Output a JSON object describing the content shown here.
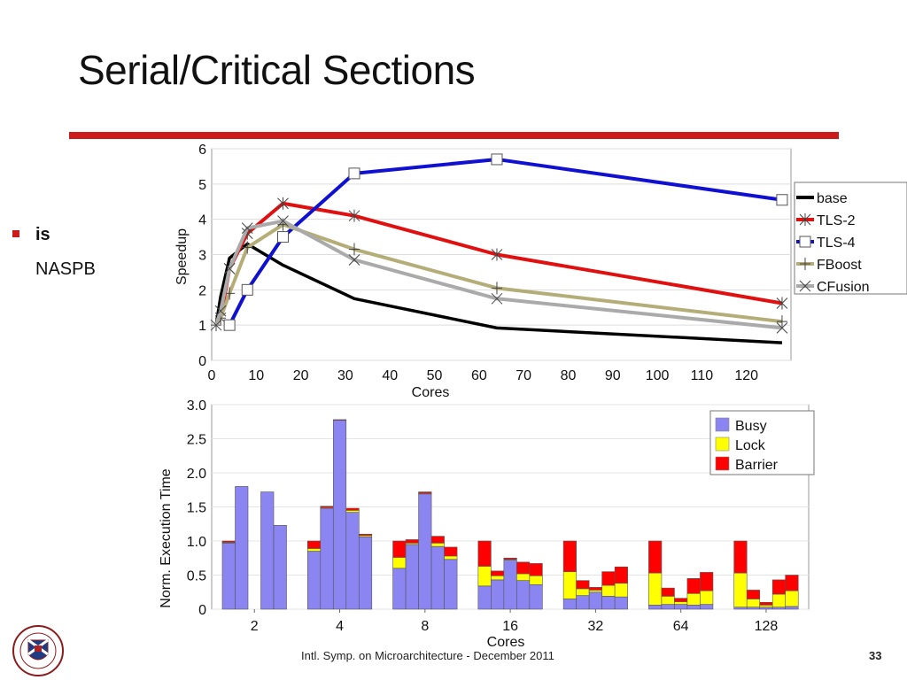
{
  "slide": {
    "title": "Serial/Critical Sections",
    "bullet_line1": "is",
    "bullet_line2": "NASPB",
    "footer": "Intl. Symp. on Microarchitecture - December 2011",
    "page_number": "33",
    "accent_color": "#cc1b1b"
  },
  "chart_data": [
    {
      "type": "line",
      "xlabel": "Cores",
      "ylabel": "Speedup",
      "xlim": [
        0,
        130
      ],
      "ylim": [
        0,
        6
      ],
      "x_ticks": [
        0,
        10,
        20,
        30,
        40,
        50,
        60,
        70,
        80,
        90,
        100,
        110,
        120
      ],
      "y_ticks": [
        0,
        1,
        2,
        3,
        4,
        5,
        6
      ],
      "legend_position": "right",
      "series": [
        {
          "name": "base",
          "color": "#000000",
          "marker": "none",
          "x": [
            1,
            2,
            4,
            8,
            16,
            32,
            64,
            128
          ],
          "y": [
            1.0,
            1.8,
            2.9,
            3.3,
            2.7,
            1.75,
            0.92,
            0.5
          ]
        },
        {
          "name": "TLS-2",
          "color": "#e01010",
          "marker": "asterisk",
          "x": [
            2,
            4,
            8,
            16,
            32,
            64,
            128
          ],
          "y": [
            1.2,
            2.6,
            3.6,
            4.45,
            4.1,
            3.0,
            1.62
          ]
        },
        {
          "name": "TLS-4",
          "color": "#1010d0",
          "marker": "square",
          "x": [
            4,
            8,
            16,
            32,
            64,
            128
          ],
          "y": [
            1.0,
            2.0,
            3.5,
            5.3,
            5.7,
            4.55
          ]
        },
        {
          "name": "FBoost",
          "color": "#b5ad78",
          "marker": "plus",
          "x": [
            1,
            2,
            4,
            8,
            16,
            32,
            64,
            128
          ],
          "y": [
            1.0,
            1.2,
            1.9,
            3.2,
            3.85,
            3.15,
            2.05,
            1.1
          ]
        },
        {
          "name": "CFusion",
          "color": "#aaaaaa",
          "marker": "x",
          "x": [
            1,
            2,
            4,
            8,
            16,
            32,
            64,
            128
          ],
          "y": [
            1.0,
            1.4,
            2.6,
            3.75,
            3.95,
            2.85,
            1.75,
            0.92
          ]
        }
      ]
    },
    {
      "type": "bar",
      "stacked": true,
      "xlabel": "Cores",
      "ylabel": "Norm. Execution Time",
      "ylim": [
        0,
        3.0
      ],
      "y_ticks": [
        "0",
        "0.5",
        "1.0",
        "1.5",
        "2.0",
        "2.5",
        "3.0"
      ],
      "categories": [
        "2",
        "4",
        "8",
        "16",
        "32",
        "64",
        "128"
      ],
      "legend_position": "top-right",
      "series": [
        {
          "name": "Busy",
          "color": "#8b85f2"
        },
        {
          "name": "Lock",
          "color": "#ffff00"
        },
        {
          "name": "Barrier",
          "color": "#ff0000"
        }
      ],
      "groups": [
        {
          "category": "2",
          "bars": [
            {
              "busy": 0.97,
              "lock": 0.01,
              "barrier": 0.02
            },
            {
              "busy": 1.8,
              "lock": 0.0,
              "barrier": 0.0
            },
            {
              "busy": 0.0,
              "lock": 0.0,
              "barrier": 0.0
            },
            {
              "busy": 1.72,
              "lock": 0.0,
              "barrier": 0.0
            },
            {
              "busy": 1.23,
              "lock": 0.0,
              "barrier": 0.0
            }
          ]
        },
        {
          "category": "4",
          "bars": [
            {
              "busy": 0.85,
              "lock": 0.04,
              "barrier": 0.11
            },
            {
              "busy": 1.48,
              "lock": 0.01,
              "barrier": 0.02
            },
            {
              "busy": 2.77,
              "lock": 0.0,
              "barrier": 0.01
            },
            {
              "busy": 1.42,
              "lock": 0.03,
              "barrier": 0.03
            },
            {
              "busy": 1.06,
              "lock": 0.02,
              "barrier": 0.02
            }
          ]
        },
        {
          "category": "8",
          "bars": [
            {
              "busy": 0.6,
              "lock": 0.16,
              "barrier": 0.24
            },
            {
              "busy": 0.95,
              "lock": 0.02,
              "barrier": 0.05
            },
            {
              "busy": 1.69,
              "lock": 0.01,
              "barrier": 0.02
            },
            {
              "busy": 0.92,
              "lock": 0.05,
              "barrier": 0.1
            },
            {
              "busy": 0.73,
              "lock": 0.05,
              "barrier": 0.13
            }
          ]
        },
        {
          "category": "16",
          "bars": [
            {
              "busy": 0.34,
              "lock": 0.29,
              "barrier": 0.37
            },
            {
              "busy": 0.43,
              "lock": 0.06,
              "barrier": 0.07
            },
            {
              "busy": 0.72,
              "lock": 0.01,
              "barrier": 0.02
            },
            {
              "busy": 0.42,
              "lock": 0.1,
              "barrier": 0.17
            },
            {
              "busy": 0.36,
              "lock": 0.13,
              "barrier": 0.18
            }
          ]
        },
        {
          "category": "32",
          "bars": [
            {
              "busy": 0.15,
              "lock": 0.4,
              "barrier": 0.45
            },
            {
              "busy": 0.2,
              "lock": 0.1,
              "barrier": 0.12
            },
            {
              "busy": 0.25,
              "lock": 0.03,
              "barrier": 0.04
            },
            {
              "busy": 0.19,
              "lock": 0.16,
              "barrier": 0.2
            },
            {
              "busy": 0.18,
              "lock": 0.2,
              "barrier": 0.24
            }
          ]
        },
        {
          "category": "64",
          "bars": [
            {
              "busy": 0.06,
              "lock": 0.47,
              "barrier": 0.47
            },
            {
              "busy": 0.07,
              "lock": 0.12,
              "barrier": 0.12
            },
            {
              "busy": 0.07,
              "lock": 0.04,
              "barrier": 0.05
            },
            {
              "busy": 0.06,
              "lock": 0.17,
              "barrier": 0.22
            },
            {
              "busy": 0.07,
              "lock": 0.2,
              "barrier": 0.27
            }
          ]
        },
        {
          "category": "128",
          "bars": [
            {
              "busy": 0.03,
              "lock": 0.5,
              "barrier": 0.47
            },
            {
              "busy": 0.03,
              "lock": 0.12,
              "barrier": 0.13
            },
            {
              "busy": 0.03,
              "lock": 0.03,
              "barrier": 0.04
            },
            {
              "busy": 0.03,
              "lock": 0.19,
              "barrier": 0.21
            },
            {
              "busy": 0.04,
              "lock": 0.23,
              "barrier": 0.23
            }
          ]
        }
      ]
    }
  ]
}
